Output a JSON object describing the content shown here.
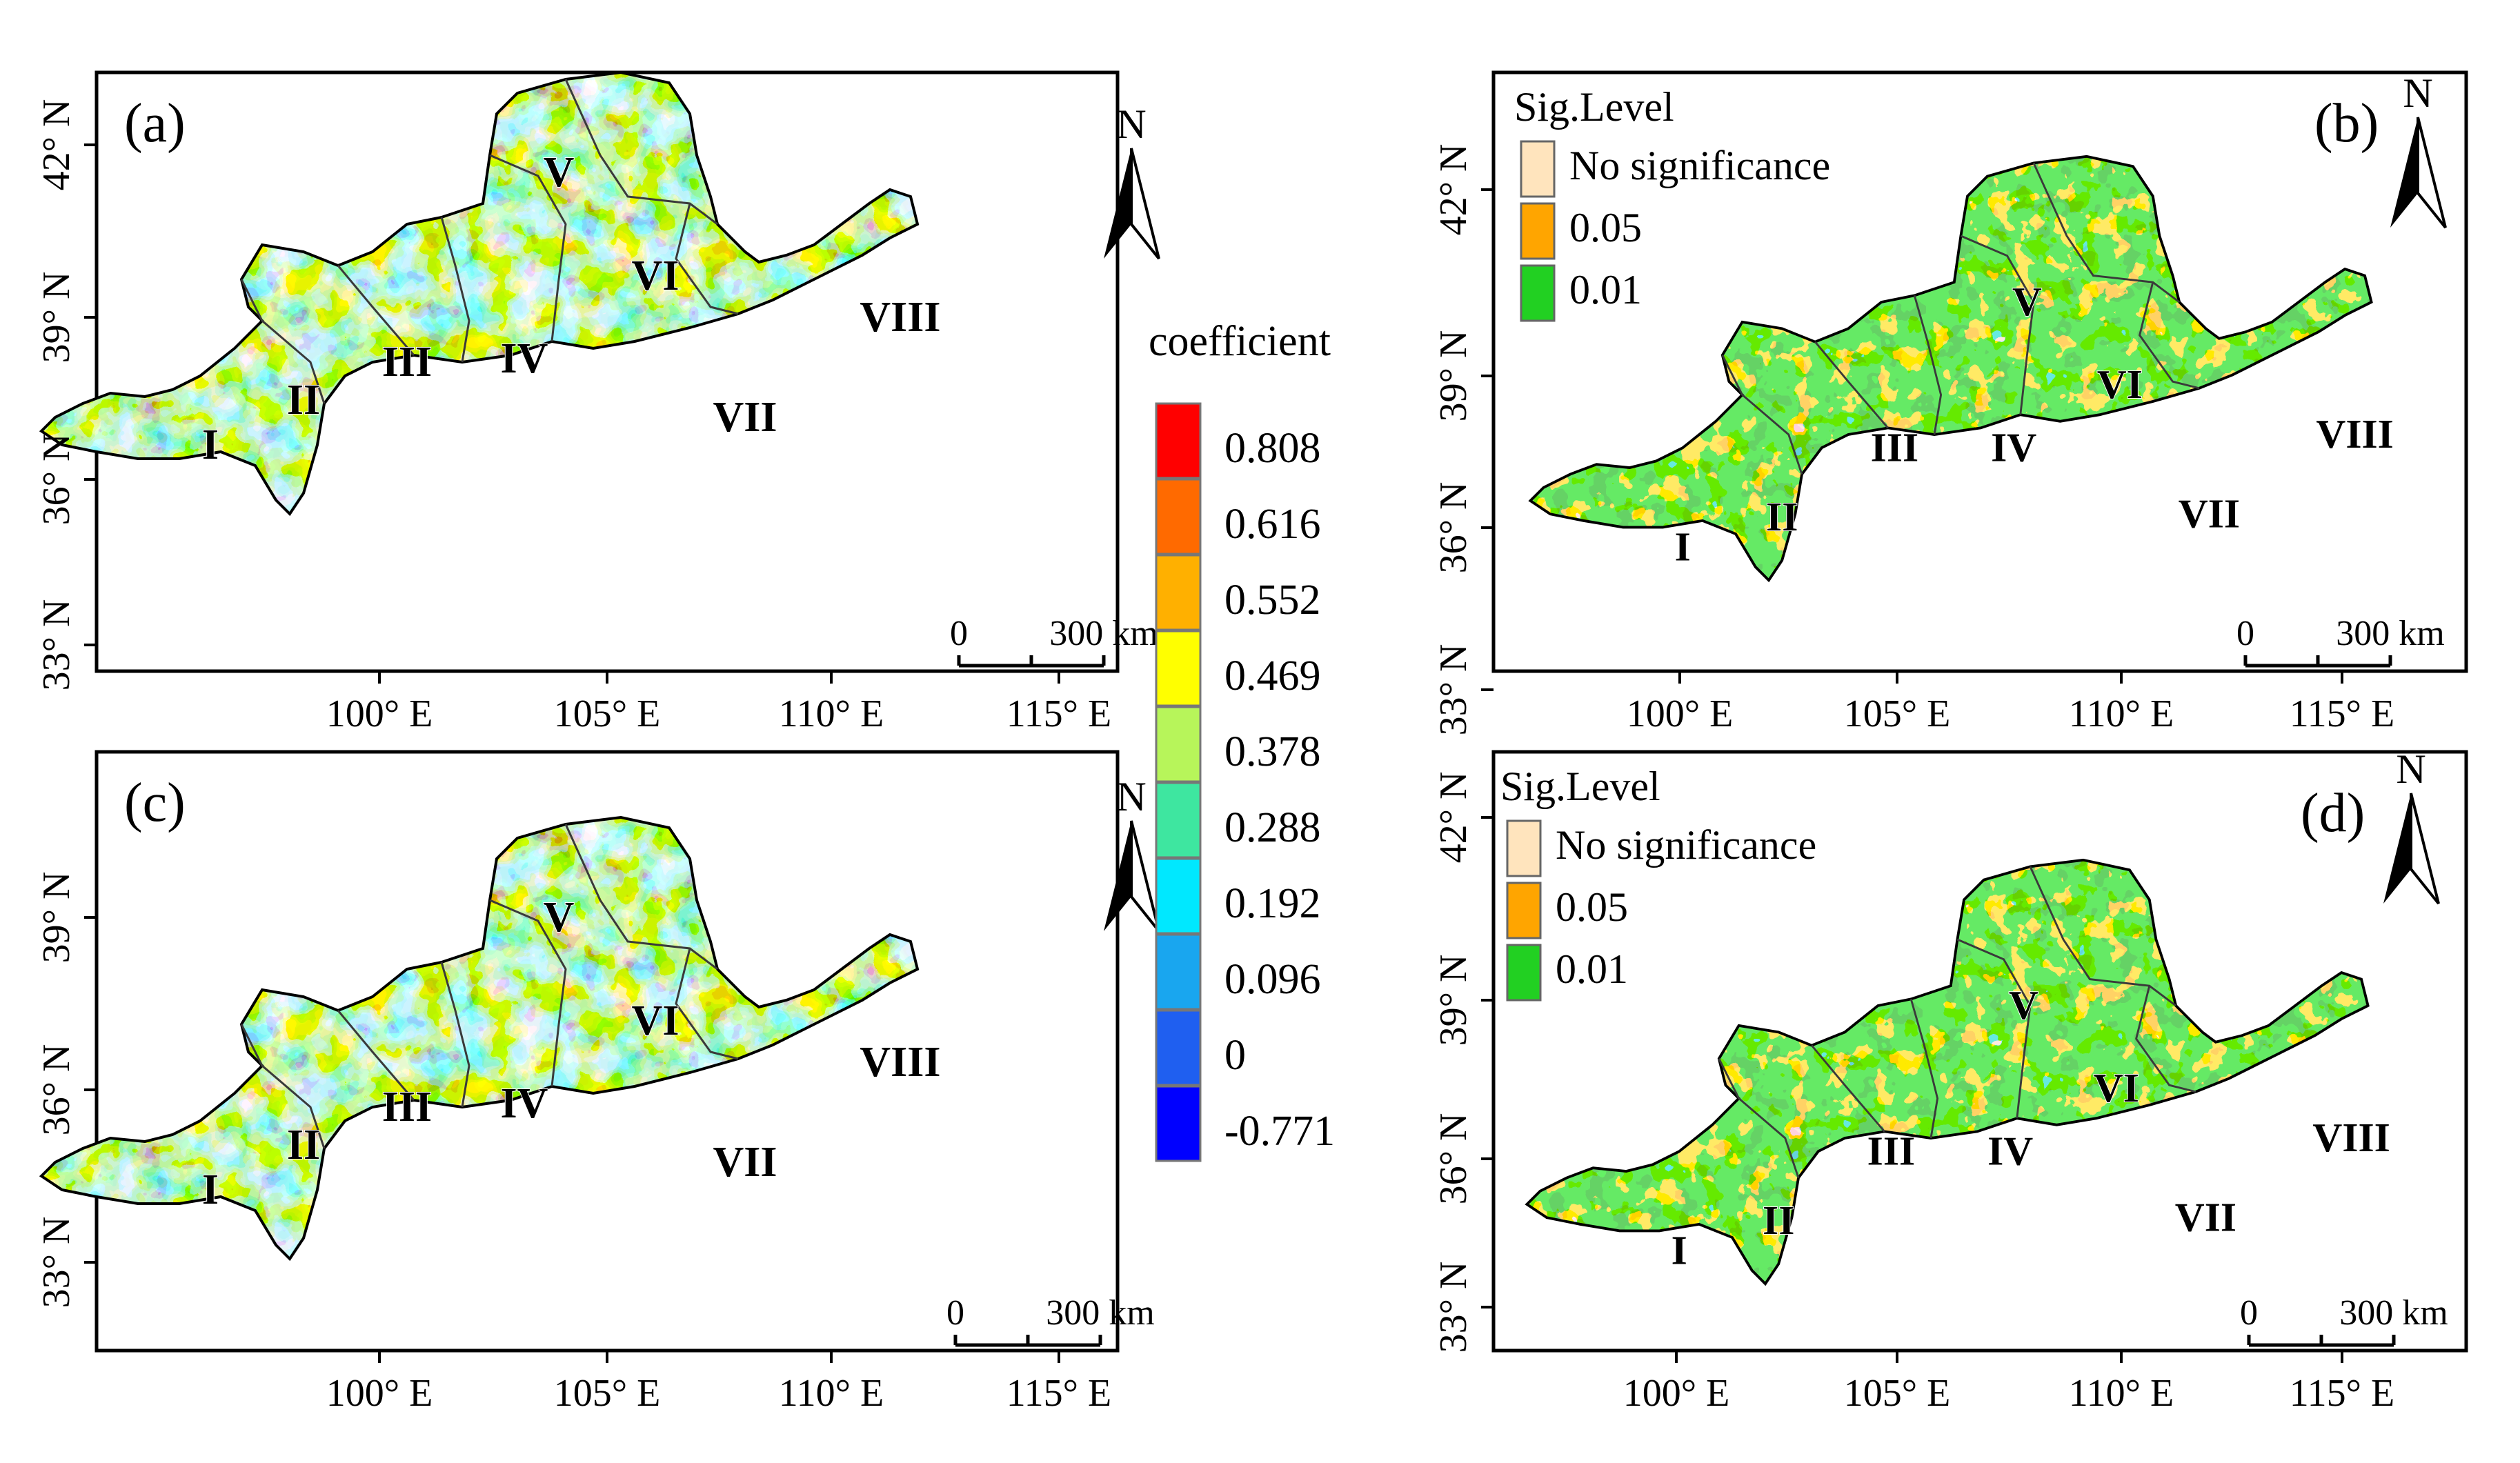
{
  "panels": [
    {
      "label": "(a)",
      "kind": "coefficient",
      "x_ticks": [
        "100° E",
        "105° E",
        "110° E",
        "115° E"
      ],
      "y_ticks": [
        "42° N",
        "39° N",
        "36° N",
        "33° N"
      ],
      "scale": {
        "zero": "0",
        "end": "300 km"
      },
      "north": "N",
      "regions": [
        "I",
        "II",
        "III",
        "IV",
        "V",
        "VI",
        "VII",
        "VIII"
      ]
    },
    {
      "label": "(b)",
      "kind": "significance",
      "x_ticks": [
        "100° E",
        "105° E",
        "110° E",
        "115° E"
      ],
      "y_ticks": [
        "42° N",
        "39° N",
        "36° N",
        "33° N"
      ],
      "scale": {
        "zero": "0",
        "end": "300 km"
      },
      "north": "N",
      "regions": [
        "I",
        "II",
        "III",
        "IV",
        "V",
        "VI",
        "VII",
        "VIII"
      ]
    },
    {
      "label": "(c)",
      "kind": "coefficient",
      "x_ticks": [
        "100° E",
        "105° E",
        "110° E",
        "115° E"
      ],
      "y_ticks": [
        "39° N",
        "36° N",
        "33° N"
      ],
      "scale": {
        "zero": "0",
        "end": "300 km"
      },
      "north": "N",
      "regions": [
        "I",
        "II",
        "III",
        "IV",
        "V",
        "VI",
        "VII",
        "VIII"
      ]
    },
    {
      "label": "(d)",
      "kind": "significance",
      "x_ticks": [
        "100° E",
        "105° E",
        "110° E",
        "115° E"
      ],
      "y_ticks": [
        "42° N",
        "39° N",
        "36° N",
        "33° N"
      ],
      "scale": {
        "zero": "0",
        "end": "300 km"
      },
      "north": "N",
      "regions": [
        "I",
        "II",
        "III",
        "IV",
        "V",
        "VI",
        "VII",
        "VIII"
      ]
    }
  ],
  "coefficient_legend": {
    "title": "coefficient",
    "classes": [
      {
        "label": "0.808",
        "color": "#ff0000"
      },
      {
        "label": "0.616",
        "color": "#ff6a00"
      },
      {
        "label": "0.552",
        "color": "#ffb000"
      },
      {
        "label": "0.469",
        "color": "#ffff00"
      },
      {
        "label": "0.378",
        "color": "#b7f55a"
      },
      {
        "label": "0.288",
        "color": "#3ee6a0"
      },
      {
        "label": "0.192",
        "color": "#00e8ff"
      },
      {
        "label": "0.096",
        "color": "#19a6ef"
      },
      {
        "label": "0",
        "color": "#1f5ff0"
      },
      {
        "label": "-0.771",
        "color": "#0000ff"
      }
    ]
  },
  "significance_legend": {
    "title": "Sig.Level",
    "classes": [
      {
        "label": "No significance",
        "color": "#ffe4bd"
      },
      {
        "label": "0.05",
        "color": "#ffa500"
      },
      {
        "label": "0.01",
        "color": "#22d022"
      }
    ]
  }
}
